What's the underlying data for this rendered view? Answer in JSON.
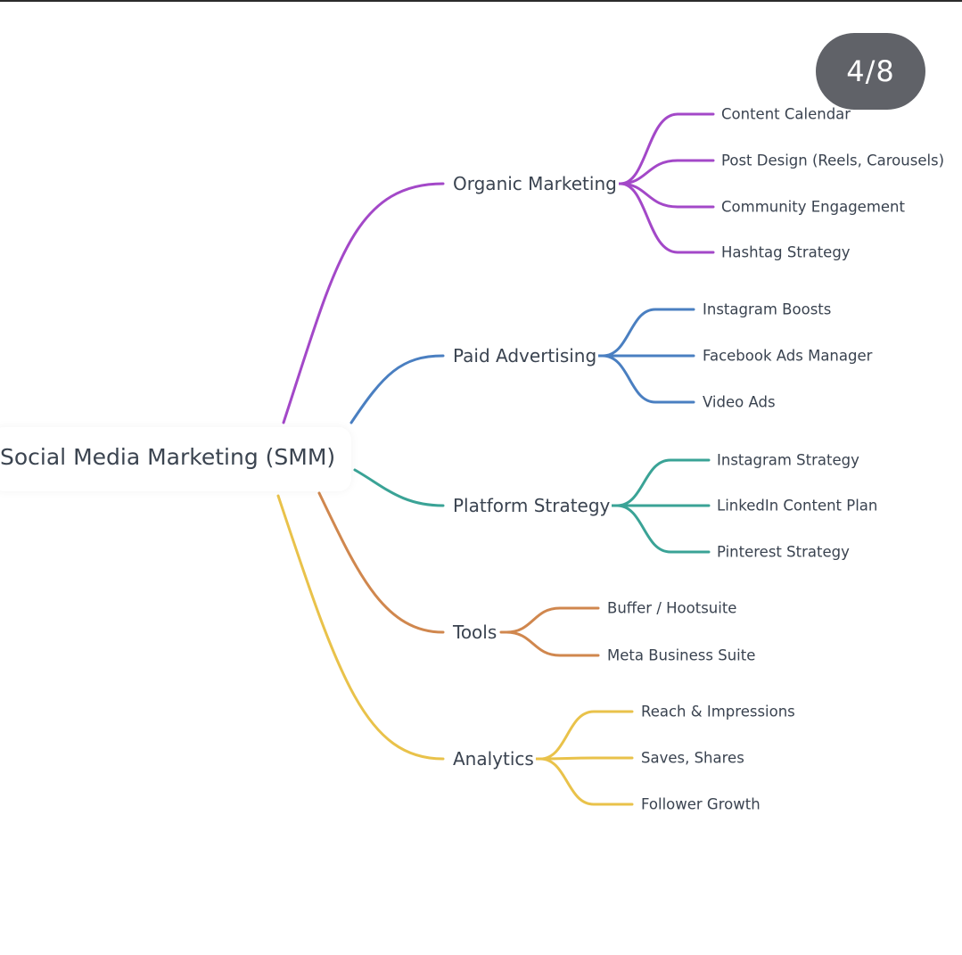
{
  "mindmap": {
    "root": "Social Media Marketing (SMM)",
    "branches": [
      {
        "label": "Organic Marketing",
        "color": "#a348c8",
        "children": [
          "Content Calendar",
          "Post Design (Reels, Carousels)",
          "Community Engagement",
          "Hashtag Strategy"
        ]
      },
      {
        "label": "Paid Advertising",
        "color": "#4a7fc1",
        "children": [
          "Instagram Boosts",
          "Facebook Ads Manager",
          "Video Ads"
        ]
      },
      {
        "label": "Platform Strategy",
        "color": "#3aa396",
        "children": [
          "Instagram Strategy",
          "LinkedIn Content Plan",
          "Pinterest Strategy"
        ]
      },
      {
        "label": "Tools",
        "color": "#d0874e",
        "children": [
          "Buffer / Hootsuite",
          "Meta Business Suite"
        ]
      },
      {
        "label": "Analytics",
        "color": "#e9c24a",
        "children": [
          "Reach & Impressions",
          "Saves, Shares",
          "Follower Growth"
        ]
      }
    ]
  },
  "pager": {
    "text": "4/8"
  }
}
